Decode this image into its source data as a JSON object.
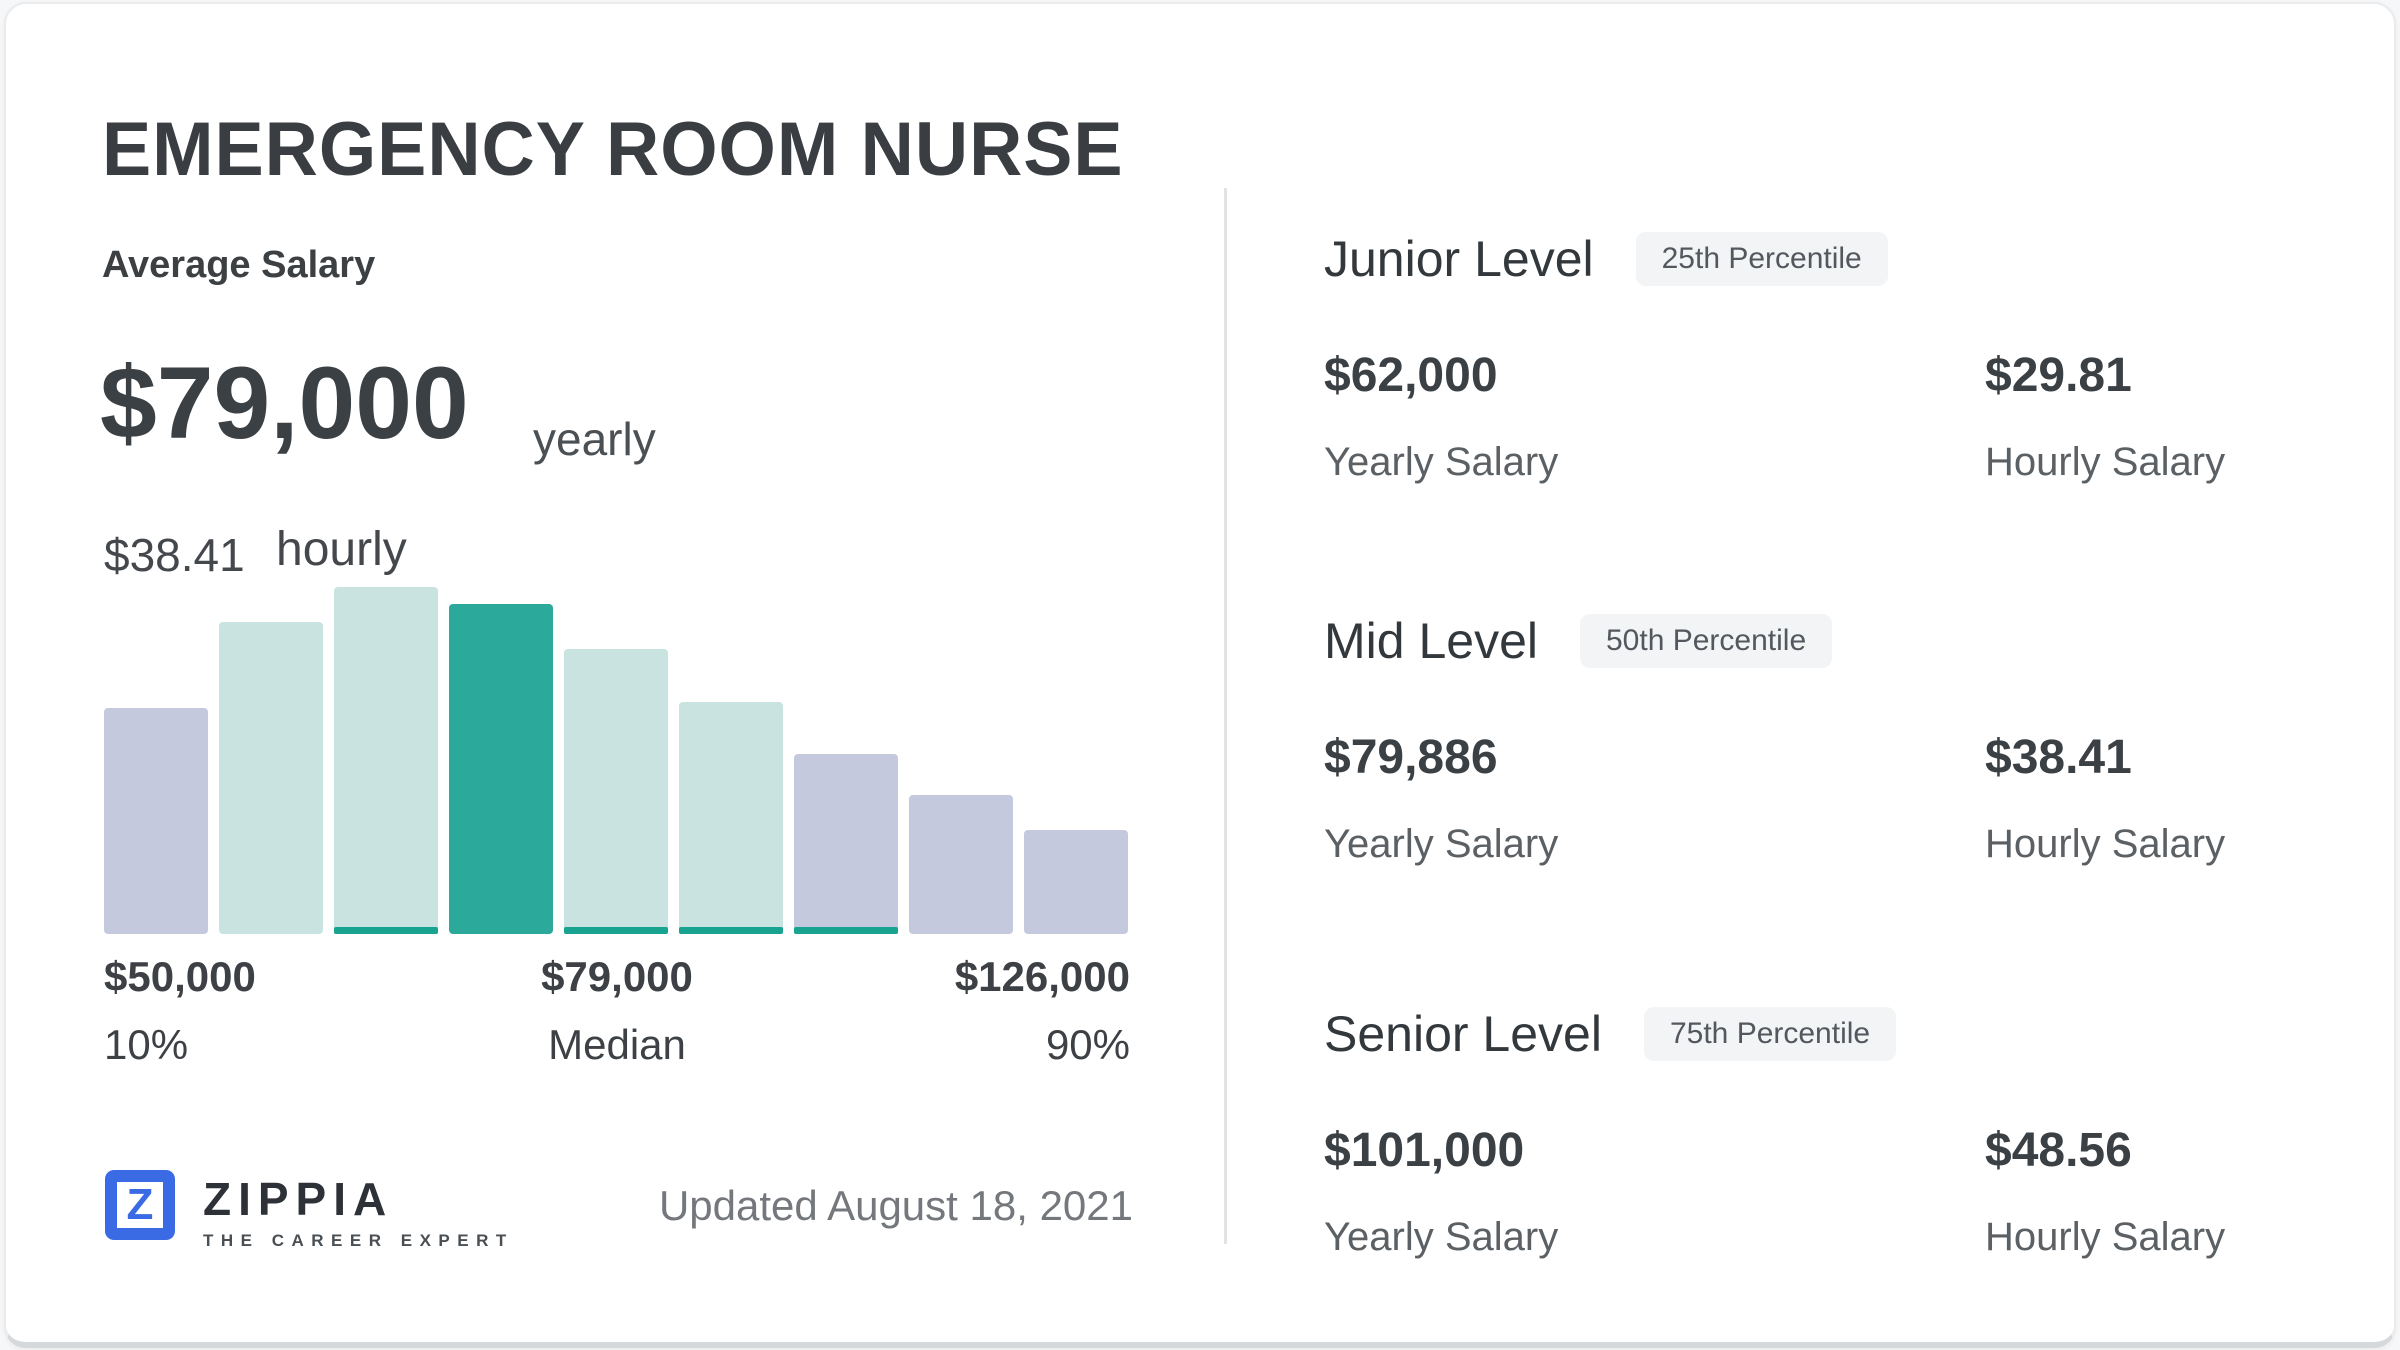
{
  "page": {
    "title": "EMERGENCY ROOM NURSE"
  },
  "average": {
    "label": "Average Salary",
    "yearly_value": "$79,000",
    "yearly_unit": "yearly",
    "hourly_value": "$38.41",
    "hourly_unit": "hourly"
  },
  "chart_data": {
    "type": "bar",
    "title": "Salary distribution histogram (no numeric y-axis shown)",
    "values_relative": [
      65,
      90,
      100,
      95,
      82,
      67,
      52,
      40,
      30
    ],
    "ylim": [
      0,
      100
    ],
    "grid": false,
    "legend": false,
    "bar_color_roles": [
      "lavender",
      "teal_light",
      "teal_light",
      "teal",
      "teal_light",
      "teal_light",
      "lavender",
      "lavender",
      "lavender"
    ],
    "bar_underline": [
      false,
      false,
      true,
      false,
      true,
      true,
      true,
      false,
      false
    ],
    "x_axis": {
      "left_value": "$50,000",
      "left_label": "10%",
      "center_value": "$79,000",
      "center_label": "Median",
      "right_value": "$126,000",
      "right_label": "90%"
    }
  },
  "colors": {
    "teal": "#2baa9c",
    "teal_light": "#c9e3e1",
    "lavender": "#c5c9dd",
    "strip": "#17a390",
    "brand_blue": "#3a6be4"
  },
  "footer": {
    "brand": "ZIPPIA",
    "brand_letter": "Z",
    "tagline": "THE CAREER EXPERT",
    "updated": "Updated August 18, 2021"
  },
  "levels": [
    {
      "title": "Junior Level",
      "badge": "25th Percentile",
      "yearly_value": "$62,000",
      "yearly_label": "Yearly Salary",
      "hourly_value": "$29.81",
      "hourly_label": "Hourly Salary"
    },
    {
      "title": "Mid Level",
      "badge": "50th Percentile",
      "yearly_value": "$79,886",
      "yearly_label": "Yearly Salary",
      "hourly_value": "$38.41",
      "hourly_label": "Hourly Salary"
    },
    {
      "title": "Senior Level",
      "badge": "75th Percentile",
      "yearly_value": "$101,000",
      "yearly_label": "Yearly Salary",
      "hourly_value": "$48.56",
      "hourly_label": "Hourly Salary"
    }
  ]
}
